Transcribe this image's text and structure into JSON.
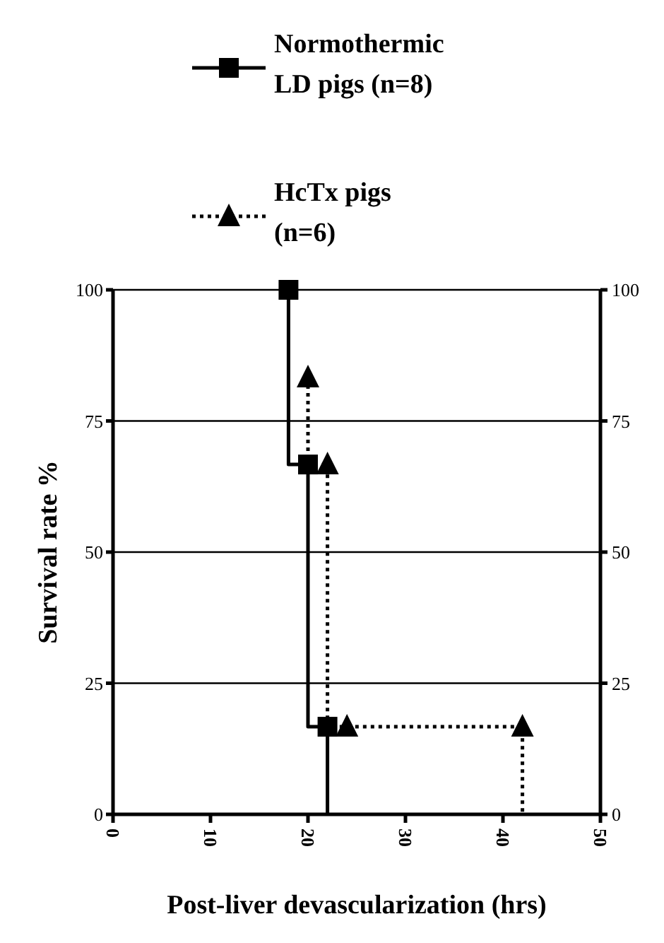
{
  "chart_data": {
    "type": "line",
    "xlabel": "Post-liver devascularization (hrs)",
    "ylabel": "Survival rate %",
    "xlim": [
      0,
      50
    ],
    "xticks": [
      0,
      10,
      20,
      30,
      40,
      50
    ],
    "ylim": [
      0,
      100
    ],
    "yticks": [
      0,
      25,
      50,
      75,
      100
    ],
    "y2lim": [
      0,
      100
    ],
    "y2ticks": [
      0,
      25,
      50,
      75,
      100
    ],
    "grid": "y",
    "legend": "top",
    "series": [
      {
        "name": "Normothermic LD pigs (n=8)",
        "type": "step",
        "color": "#000000",
        "marker": "square",
        "line_style": "solid",
        "x": [
          18,
          20,
          22,
          22
        ],
        "values": [
          100,
          66.7,
          16.7,
          0
        ]
      },
      {
        "name": "HcTx pigs (n=6)",
        "type": "step",
        "color": "#000000",
        "marker": "triangle",
        "line_style": "dotted",
        "x": [
          20,
          22,
          24,
          42,
          42
        ],
        "values": [
          83.3,
          66.7,
          16.7,
          16.7,
          0
        ]
      }
    ]
  }
}
